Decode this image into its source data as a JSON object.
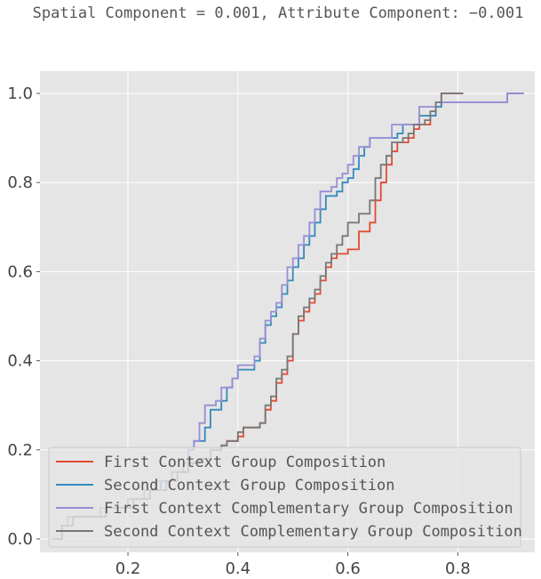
{
  "chart_data": {
    "type": "line",
    "step": true,
    "title": "Spatial Component = 0.001, Attribute Component: −0.001",
    "xlabel": "",
    "ylabel": "",
    "xlim": [
      0.04,
      0.94
    ],
    "ylim": [
      -0.03,
      1.05
    ],
    "xticks": [
      0.2,
      0.4,
      0.6,
      0.8
    ],
    "xtick_labels": [
      "0.2",
      "0.4",
      "0.6",
      "0.8"
    ],
    "yticks": [
      0.0,
      0.2,
      0.4,
      0.6,
      0.8,
      1.0
    ],
    "ytick_labels": [
      "0.0",
      "0.2",
      "0.4",
      "0.6",
      "0.8",
      "1.0"
    ],
    "grid": true,
    "legend_position": "lower-left",
    "series": [
      {
        "name": "First Context Group Composition",
        "color": "#E24A33",
        "points": [
          [
            0.07,
            0.0
          ],
          [
            0.08,
            0.03
          ],
          [
            0.1,
            0.05
          ],
          [
            0.16,
            0.07
          ],
          [
            0.21,
            0.09
          ],
          [
            0.24,
            0.11
          ],
          [
            0.27,
            0.13
          ],
          [
            0.29,
            0.15
          ],
          [
            0.31,
            0.17
          ],
          [
            0.33,
            0.18
          ],
          [
            0.35,
            0.2
          ],
          [
            0.37,
            0.21
          ],
          [
            0.38,
            0.22
          ],
          [
            0.4,
            0.23
          ],
          [
            0.41,
            0.25
          ],
          [
            0.44,
            0.26
          ],
          [
            0.45,
            0.29
          ],
          [
            0.46,
            0.31
          ],
          [
            0.47,
            0.35
          ],
          [
            0.48,
            0.37
          ],
          [
            0.49,
            0.4
          ],
          [
            0.5,
            0.46
          ],
          [
            0.51,
            0.49
          ],
          [
            0.52,
            0.51
          ],
          [
            0.53,
            0.53
          ],
          [
            0.54,
            0.55
          ],
          [
            0.55,
            0.58
          ],
          [
            0.56,
            0.61
          ],
          [
            0.57,
            0.63
          ],
          [
            0.58,
            0.64
          ],
          [
            0.6,
            0.65
          ],
          [
            0.62,
            0.69
          ],
          [
            0.64,
            0.71
          ],
          [
            0.65,
            0.76
          ],
          [
            0.66,
            0.8
          ],
          [
            0.67,
            0.84
          ],
          [
            0.68,
            0.87
          ],
          [
            0.69,
            0.89
          ],
          [
            0.71,
            0.9
          ],
          [
            0.72,
            0.92
          ],
          [
            0.73,
            0.93
          ],
          [
            0.75,
            0.95
          ],
          [
            0.76,
            0.97
          ],
          [
            0.77,
            1.0
          ],
          [
            0.81,
            1.0
          ]
        ]
      },
      {
        "name": "Second Context Group Composition",
        "color": "#348ABD",
        "points": [
          [
            0.06,
            0.0
          ],
          [
            0.08,
            0.03
          ],
          [
            0.09,
            0.05
          ],
          [
            0.16,
            0.07
          ],
          [
            0.2,
            0.09
          ],
          [
            0.23,
            0.11
          ],
          [
            0.26,
            0.13
          ],
          [
            0.28,
            0.15
          ],
          [
            0.3,
            0.17
          ],
          [
            0.31,
            0.2
          ],
          [
            0.32,
            0.22
          ],
          [
            0.34,
            0.25
          ],
          [
            0.35,
            0.29
          ],
          [
            0.37,
            0.31
          ],
          [
            0.38,
            0.34
          ],
          [
            0.39,
            0.36
          ],
          [
            0.4,
            0.38
          ],
          [
            0.43,
            0.4
          ],
          [
            0.44,
            0.44
          ],
          [
            0.45,
            0.48
          ],
          [
            0.46,
            0.5
          ],
          [
            0.47,
            0.52
          ],
          [
            0.48,
            0.55
          ],
          [
            0.49,
            0.58
          ],
          [
            0.5,
            0.61
          ],
          [
            0.51,
            0.63
          ],
          [
            0.52,
            0.66
          ],
          [
            0.53,
            0.68
          ],
          [
            0.54,
            0.71
          ],
          [
            0.55,
            0.74
          ],
          [
            0.56,
            0.77
          ],
          [
            0.58,
            0.78
          ],
          [
            0.59,
            0.8
          ],
          [
            0.6,
            0.81
          ],
          [
            0.61,
            0.83
          ],
          [
            0.62,
            0.86
          ],
          [
            0.63,
            0.88
          ],
          [
            0.64,
            0.9
          ],
          [
            0.69,
            0.91
          ],
          [
            0.7,
            0.93
          ],
          [
            0.73,
            0.95
          ],
          [
            0.76,
            0.97
          ],
          [
            0.77,
            0.98
          ],
          [
            0.83,
            0.98
          ],
          [
            0.89,
            1.0
          ],
          [
            0.92,
            1.0
          ]
        ]
      },
      {
        "name": "First Context Complementary Group Composition",
        "color": "#988ED5",
        "points": [
          [
            0.06,
            0.0
          ],
          [
            0.08,
            0.03
          ],
          [
            0.09,
            0.05
          ],
          [
            0.15,
            0.07
          ],
          [
            0.2,
            0.09
          ],
          [
            0.23,
            0.11
          ],
          [
            0.25,
            0.13
          ],
          [
            0.28,
            0.15
          ],
          [
            0.3,
            0.17
          ],
          [
            0.31,
            0.2
          ],
          [
            0.32,
            0.22
          ],
          [
            0.33,
            0.26
          ],
          [
            0.34,
            0.3
          ],
          [
            0.36,
            0.31
          ],
          [
            0.37,
            0.34
          ],
          [
            0.39,
            0.36
          ],
          [
            0.4,
            0.39
          ],
          [
            0.43,
            0.41
          ],
          [
            0.44,
            0.45
          ],
          [
            0.45,
            0.49
          ],
          [
            0.46,
            0.51
          ],
          [
            0.47,
            0.53
          ],
          [
            0.48,
            0.57
          ],
          [
            0.49,
            0.61
          ],
          [
            0.5,
            0.63
          ],
          [
            0.51,
            0.66
          ],
          [
            0.52,
            0.68
          ],
          [
            0.53,
            0.71
          ],
          [
            0.54,
            0.74
          ],
          [
            0.55,
            0.78
          ],
          [
            0.57,
            0.79
          ],
          [
            0.58,
            0.81
          ],
          [
            0.59,
            0.82
          ],
          [
            0.6,
            0.84
          ],
          [
            0.61,
            0.86
          ],
          [
            0.62,
            0.88
          ],
          [
            0.64,
            0.9
          ],
          [
            0.68,
            0.93
          ],
          [
            0.73,
            0.97
          ],
          [
            0.76,
            0.98
          ],
          [
            0.89,
            1.0
          ],
          [
            0.92,
            1.0
          ]
        ]
      },
      {
        "name": "Second Context Complementary Group Composition",
        "color": "#777777",
        "points": [
          [
            0.07,
            0.0
          ],
          [
            0.08,
            0.03
          ],
          [
            0.1,
            0.05
          ],
          [
            0.16,
            0.07
          ],
          [
            0.21,
            0.09
          ],
          [
            0.24,
            0.11
          ],
          [
            0.27,
            0.13
          ],
          [
            0.29,
            0.15
          ],
          [
            0.31,
            0.17
          ],
          [
            0.33,
            0.18
          ],
          [
            0.35,
            0.2
          ],
          [
            0.37,
            0.21
          ],
          [
            0.38,
            0.22
          ],
          [
            0.4,
            0.24
          ],
          [
            0.41,
            0.25
          ],
          [
            0.44,
            0.26
          ],
          [
            0.45,
            0.3
          ],
          [
            0.46,
            0.32
          ],
          [
            0.47,
            0.36
          ],
          [
            0.48,
            0.38
          ],
          [
            0.49,
            0.41
          ],
          [
            0.5,
            0.46
          ],
          [
            0.51,
            0.5
          ],
          [
            0.52,
            0.52
          ],
          [
            0.53,
            0.54
          ],
          [
            0.54,
            0.56
          ],
          [
            0.55,
            0.59
          ],
          [
            0.56,
            0.62
          ],
          [
            0.57,
            0.64
          ],
          [
            0.58,
            0.66
          ],
          [
            0.59,
            0.68
          ],
          [
            0.6,
            0.71
          ],
          [
            0.62,
            0.73
          ],
          [
            0.64,
            0.76
          ],
          [
            0.65,
            0.81
          ],
          [
            0.66,
            0.84
          ],
          [
            0.67,
            0.86
          ],
          [
            0.68,
            0.89
          ],
          [
            0.7,
            0.9
          ],
          [
            0.71,
            0.91
          ],
          [
            0.72,
            0.93
          ],
          [
            0.74,
            0.94
          ],
          [
            0.75,
            0.96
          ],
          [
            0.76,
            0.98
          ],
          [
            0.77,
            1.0
          ],
          [
            0.81,
            1.0
          ]
        ]
      }
    ]
  }
}
